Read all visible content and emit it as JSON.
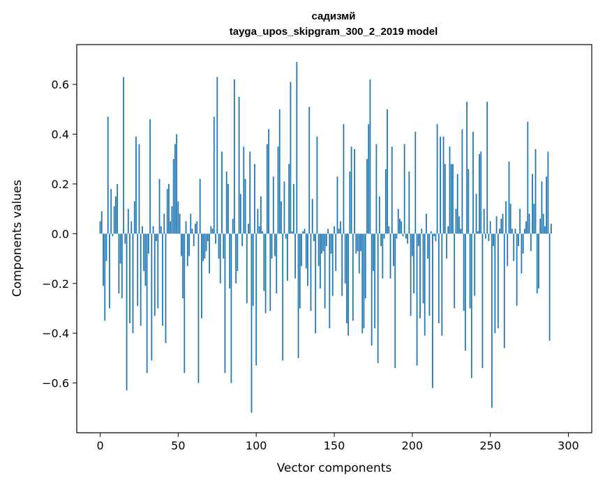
{
  "chart_data": {
    "type": "bar",
    "title": "садизмй",
    "subtitle": "tayga_upos_skipgram_300_2_2019 model",
    "xlabel": "Vector components",
    "ylabel": "Components values",
    "xlim": [
      -15,
      315
    ],
    "ylim": [
      -0.8,
      0.76
    ],
    "xticks": [
      0,
      50,
      100,
      150,
      200,
      250,
      300
    ],
    "yticks": [
      -0.6,
      -0.4,
      -0.2,
      0.0,
      0.2,
      0.4,
      0.6
    ],
    "ytick_labels": [
      "−0.6",
      "−0.4",
      "−0.2",
      "0.0",
      "0.2",
      "0.4",
      "0.6"
    ],
    "xtick_labels": [
      "0",
      "50",
      "100",
      "150",
      "200",
      "250",
      "300"
    ],
    "grid": false,
    "bar_color": "#1f77b4",
    "values": [
      0.05,
      0.09,
      -0.21,
      -0.35,
      -0.11,
      0.47,
      -0.3,
      0.18,
      -0.01,
      0.11,
      0.15,
      0.2,
      -0.24,
      -0.12,
      -0.26,
      0.63,
      -0.04,
      -0.63,
      0.1,
      -0.36,
      0.05,
      -0.4,
      0.13,
      0.39,
      -0.29,
      0.36,
      -0.37,
      0.03,
      -0.15,
      -0.21,
      -0.56,
      -0.08,
      0.46,
      -0.51,
      0.03,
      -0.33,
      -0.03,
      -0.3,
      0.22,
      0.03,
      -0.37,
      0.08,
      -0.44,
      0.18,
      0.2,
      0.05,
      0.11,
      0.3,
      0.36,
      0.4,
      0.13,
      0.08,
      -0.09,
      -0.26,
      -0.56,
      0.05,
      -0.13,
      -0.09,
      0.08,
      0.02,
      -0.05,
      0.04,
      0.05,
      -0.6,
      0.22,
      -0.34,
      -0.11,
      -0.1,
      -0.07,
      -0.03,
      -0.16,
      0.03,
      0.02,
      0.47,
      -0.04,
      0.63,
      -0.1,
      -0.2,
      0.33,
      -0.1,
      -0.56,
      0.25,
      0.2,
      -0.22,
      -0.6,
      0.06,
      0.62,
      -0.2,
      -0.15,
      0.55,
      0.16,
      -0.05,
      0.35,
      0.22,
      -0.28,
      0.04,
      0.33,
      -0.72,
      -0.29,
      0.28,
      -0.53,
      0.1,
      0.03,
      0.15,
      0.01,
      -0.23,
      -0.32,
      0.36,
      0.42,
      -0.31,
      -0.1,
      0.23,
      -0.09,
      -0.24,
      0.35,
      0.5,
      0.13,
      -0.51,
      0.21,
      -0.02,
      -0.19,
      0.28,
      0.61,
      0.01,
      0.2,
      -0.18,
      0.69,
      -0.5,
      -0.3,
      -0.13,
      0.01,
      0.02,
      -0.14,
      -0.21,
      0.51,
      -0.31,
      0.14,
      -0.03,
      -0.4,
      0.39,
      -0.13,
      -0.22,
      -0.08,
      -0.07,
      -0.3,
      -0.05,
      0.02,
      -0.38,
      -0.08,
      -0.25,
      0.03,
      -0.15,
      0.23,
      0.02,
      0.05,
      -0.25,
      0.44,
      -0.2,
      -0.36,
      -0.41,
      0.25,
      0.35,
      -0.35,
      0.34,
      -0.08,
      -0.07,
      -0.16,
      -0.07,
      -0.4,
      -0.38,
      -0.26,
      0.3,
      0.44,
      0.62,
      -0.45,
      -0.15,
      -0.38,
      0.36,
      -0.52,
      0.15,
      -0.05,
      -0.18,
      -0.02,
      0.26,
      0.5,
      0.03,
      -0.18,
      0.35,
      -0.13,
      -0.54,
      -0.02,
      0.1,
      0.06,
      0.05,
      -0.01,
      0.36,
      -0.02,
      -0.04,
      0.25,
      -0.33,
      -0.09,
      -0.24,
      0.41,
      -0.53,
      -0.05,
      -0.34,
      0.02,
      -0.28,
      -0.41,
      0.08,
      -0.1,
      -0.33,
      0.01,
      -0.62,
      -0.01,
      -0.03,
      0.44,
      -0.36,
      0.39,
      -0.41,
      0.39,
      0.28,
      -0.1,
      0.03,
      0.35,
      0.28,
      0.28,
      -0.3,
      0.1,
      0.24,
      0.07,
      0.02,
      0.42,
      -0.31,
      -0.47,
      0.53,
      0.26,
      -0.3,
      -0.58,
      0.41,
      -0.25,
      0.16,
      0.01,
      0.32,
      0.33,
      -0.54,
      0.1,
      -0.02,
      0.53,
      -0.03,
      0.05,
      -0.7,
      -0.05,
      -0.4,
      0.07,
      -0.38,
      0.02,
      0.06,
      0.08,
      -0.46,
      0.13,
      -0.13,
      0.29,
      0.12,
      0.02,
      -0.11,
      0.02,
      -0.29,
      -0.05,
      0.1,
      -0.16,
      -0.08,
      0.02,
      0.05,
      0.45,
      0.08,
      -0.07,
      0.24,
      0.12,
      0.34,
      -0.24,
      -0.22,
      0.06,
      0.21,
      0.08,
      0.03,
      0.23,
      0.33,
      -0.43,
      0.04
    ]
  }
}
